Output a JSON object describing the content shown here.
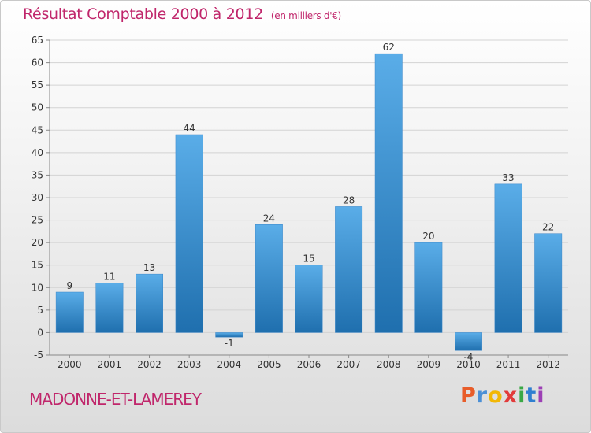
{
  "title": "Résultat Comptable 2000 à 2012",
  "subtitle": "(en milliers d'€)",
  "commune": "MADONNE-ET-LAMEREY",
  "logo": {
    "text": "Proxiti",
    "letter_colors": [
      "#e85d2a",
      "#4a8fd6",
      "#f2b705",
      "#e23b3b",
      "#39a845",
      "#2f7fd0",
      "#9c3fb5"
    ]
  },
  "colors": {
    "title": "#c0266b",
    "bar_top": "#5aade8",
    "bar_bottom": "#1f6fae",
    "grid": "#d3d3d3"
  },
  "chart_data": {
    "type": "bar",
    "title": "Résultat Comptable 2000 à 2012",
    "subtitle": "(en milliers d'€)",
    "categories": [
      "2000",
      "2001",
      "2002",
      "2003",
      "2004",
      "2005",
      "2006",
      "2007",
      "2008",
      "2009",
      "2010",
      "2011",
      "2012"
    ],
    "values": [
      9,
      11,
      13,
      44,
      -1,
      24,
      15,
      28,
      62,
      20,
      -4,
      33,
      22
    ],
    "data_labels": [
      "9",
      "11",
      "13",
      "44",
      "-1",
      "24",
      "15",
      "28",
      "62",
      "20",
      "-4",
      "33",
      "22"
    ],
    "ylim": [
      -5,
      65
    ],
    "yticks": [
      -5,
      0,
      5,
      10,
      15,
      20,
      25,
      30,
      35,
      40,
      45,
      50,
      55,
      60,
      65
    ],
    "grid": true,
    "xlabel": "",
    "ylabel": ""
  }
}
